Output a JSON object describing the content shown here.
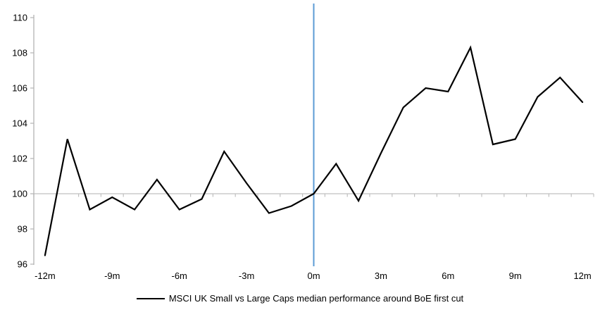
{
  "chart_data": {
    "type": "line",
    "title": "",
    "x_months": [
      -12,
      -11,
      -10,
      -9,
      -8,
      -7,
      -6,
      -5,
      -4,
      -3,
      -2,
      -1,
      0,
      1,
      2,
      3,
      4,
      5,
      6,
      7,
      8,
      9,
      10,
      11,
      12
    ],
    "series": [
      {
        "name": "MSCI UK Small vs Large Caps median performance around BoE first cut",
        "color": "#000000",
        "values": [
          96.5,
          103.1,
          99.1,
          99.8,
          99.1,
          100.8,
          99.1,
          99.7,
          102.4,
          100.6,
          98.9,
          99.3,
          100.0,
          101.7,
          99.6,
          102.3,
          104.9,
          106.0,
          105.8,
          108.3,
          102.8,
          103.1,
          105.5,
          106.6,
          105.2
        ]
      }
    ],
    "x_axis": {
      "labels": [
        "-12m",
        "-9m",
        "-6m",
        "-3m",
        "0m",
        "3m",
        "6m",
        "9m",
        "12m"
      ],
      "label_step_months": 3,
      "minor_tick_every_months": 1
    },
    "y_axis": {
      "min": 96,
      "max": 110,
      "ticks": [
        96,
        98,
        100,
        102,
        104,
        106,
        108,
        110
      ]
    },
    "baseline_value": 100,
    "event_line_month": 0,
    "legend_position": "bottom",
    "grid": "baseline-only",
    "colors": {
      "series": "#000000",
      "event_line": "#5b9bd5",
      "baseline": "#c0c0c0",
      "axis": "#b3b3b3",
      "text": "#000000"
    }
  }
}
